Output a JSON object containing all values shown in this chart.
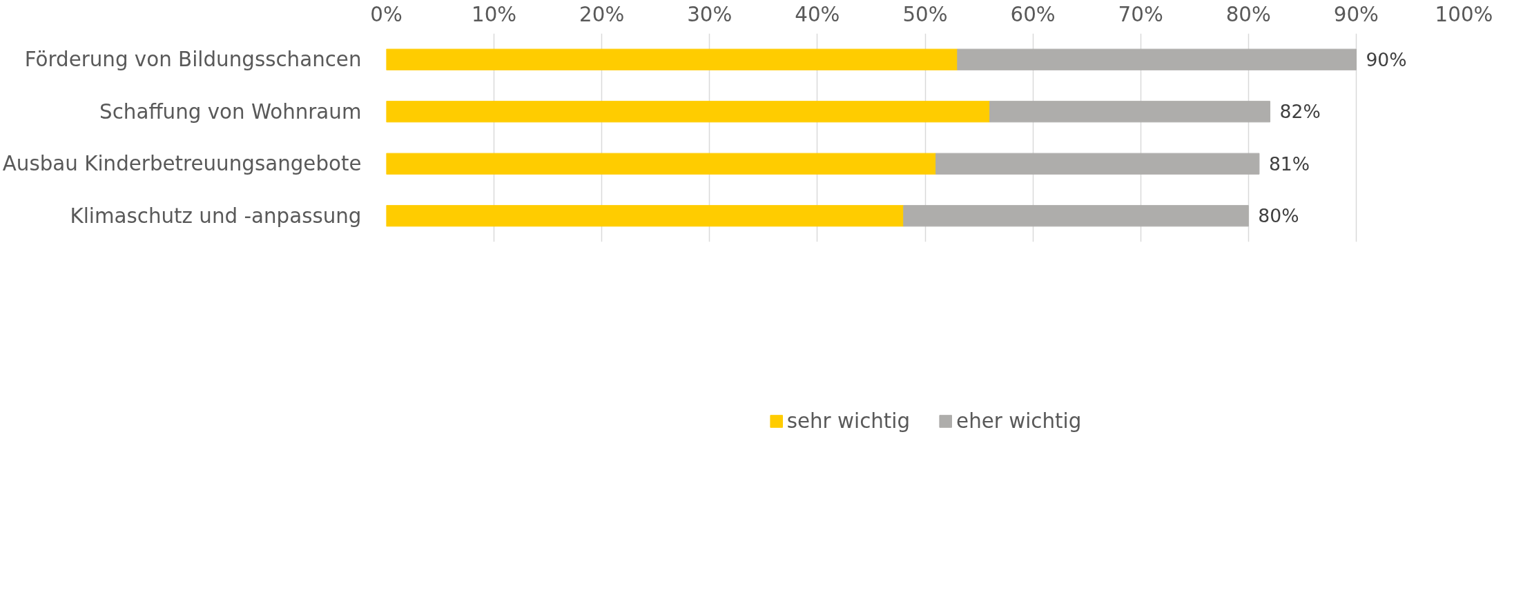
{
  "chart_data": {
    "type": "bar",
    "orientation": "horizontal",
    "stacked": true,
    "categories": [
      "Förderung von Bildungsschancen",
      "Schaffung von Wohnraum",
      "Ausbau Kinderbetreuungsangebote",
      "Klimaschutz und -anpassung"
    ],
    "series": [
      {
        "name": "sehr wichtig",
        "color": "#ffcc00",
        "values": [
          53,
          56,
          51,
          48
        ]
      },
      {
        "name": "eher wichtig",
        "color": "#aeadab",
        "values": [
          37,
          26,
          30,
          32
        ]
      }
    ],
    "totals": [
      "90%",
      "82%",
      "81%",
      "80%"
    ],
    "xlim": [
      0,
      100
    ],
    "xticks": [
      {
        "value": 0,
        "label": "0%"
      },
      {
        "value": 10,
        "label": "10%"
      },
      {
        "value": 20,
        "label": "20%"
      },
      {
        "value": 30,
        "label": "30%"
      },
      {
        "value": 40,
        "label": "40%"
      },
      {
        "value": 50,
        "label": "50%"
      },
      {
        "value": 60,
        "label": "60%"
      },
      {
        "value": 70,
        "label": "70%"
      },
      {
        "value": 80,
        "label": "80%"
      },
      {
        "value": 90,
        "label": "90%"
      },
      {
        "value": 100,
        "label": "100%"
      }
    ],
    "grid": "x",
    "legend": "bottom"
  }
}
